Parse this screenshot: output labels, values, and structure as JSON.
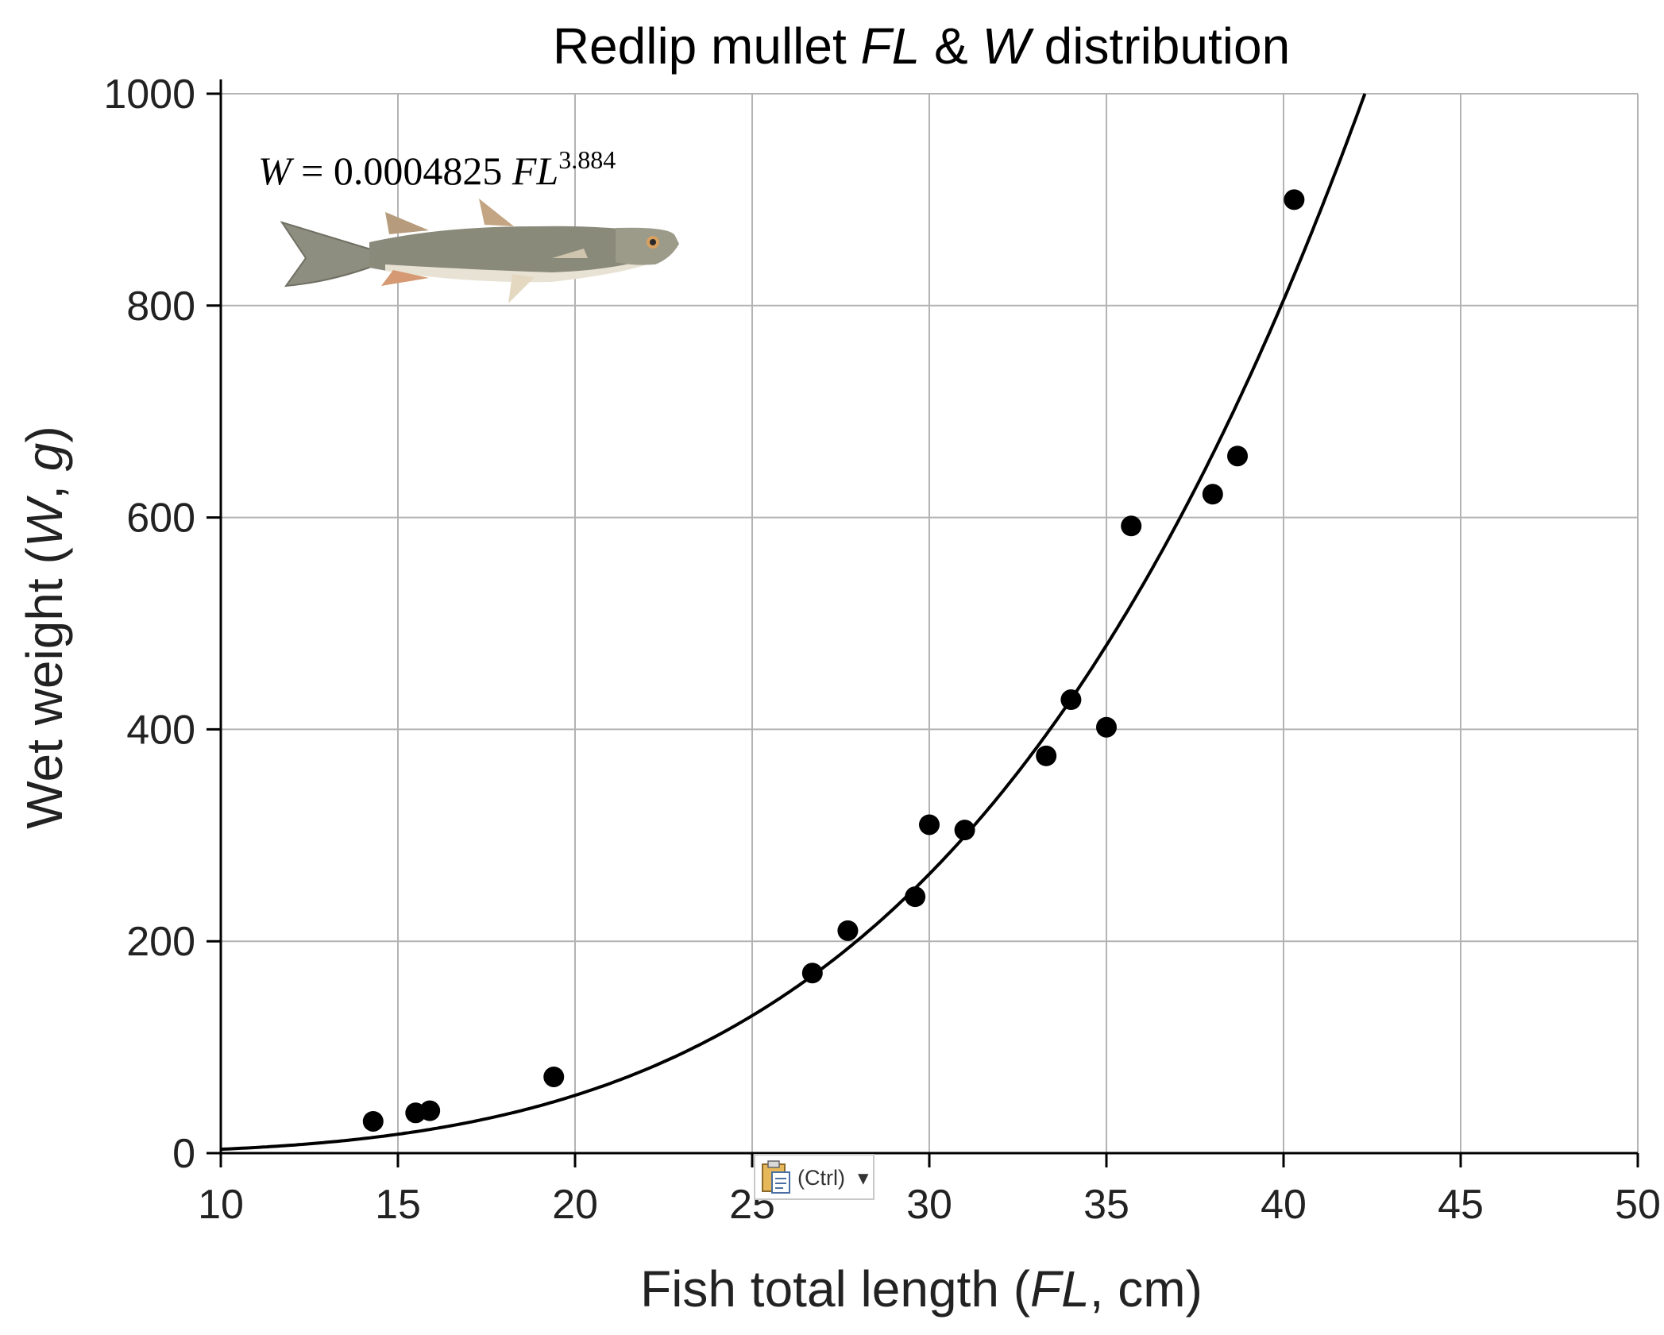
{
  "chart_data": {
    "type": "scatter",
    "title": {
      "prefix": "Redlip mullet ",
      "fl": "FL",
      "amp": " & ",
      "w": "W",
      "suffix": " distribution"
    },
    "xlabel": {
      "prefix": "Fish total length (",
      "italic": "FL",
      "suffix": ", cm)"
    },
    "ylabel": {
      "prefix": "Wet weight (",
      "italic1": "W",
      "mid": ", ",
      "italic2": "g",
      "suffix": ")"
    },
    "xlim": [
      10,
      50
    ],
    "ylim": [
      0,
      1000
    ],
    "xticks": [
      10,
      15,
      20,
      25,
      30,
      35,
      40,
      45,
      50
    ],
    "yticks": [
      0,
      200,
      400,
      600,
      800,
      1000
    ],
    "grid": true,
    "points": [
      {
        "x": 14.3,
        "y": 30
      },
      {
        "x": 15.5,
        "y": 38
      },
      {
        "x": 15.9,
        "y": 40
      },
      {
        "x": 19.4,
        "y": 72
      },
      {
        "x": 26.7,
        "y": 170
      },
      {
        "x": 27.7,
        "y": 210
      },
      {
        "x": 29.6,
        "y": 242
      },
      {
        "x": 30.0,
        "y": 310
      },
      {
        "x": 31.0,
        "y": 305
      },
      {
        "x": 33.3,
        "y": 375
      },
      {
        "x": 34.0,
        "y": 428
      },
      {
        "x": 35.0,
        "y": 402
      },
      {
        "x": 35.7,
        "y": 592
      },
      {
        "x": 38.0,
        "y": 622
      },
      {
        "x": 38.7,
        "y": 658
      },
      {
        "x": 40.3,
        "y": 900
      }
    ],
    "fit": {
      "a": 0.0004825,
      "b": 3.884,
      "equation": {
        "lhs": "W",
        "eq": " = 0.0004825 ",
        "var": "FL",
        "exp": "3.884"
      }
    },
    "colors": {
      "points": "#000000",
      "curve": "#000000",
      "grid": "#b3b3b3",
      "axis": "#000000"
    }
  },
  "fish_image": {
    "icon": "redlip-mullet-fish-icon",
    "colors": {
      "body": "#8a8a7a",
      "belly": "#e8e2d4",
      "fins": "#c79a72"
    }
  },
  "paste_options": {
    "icon": "clipboard-icon",
    "label": "(Ctrl)",
    "arrow": "▾"
  }
}
